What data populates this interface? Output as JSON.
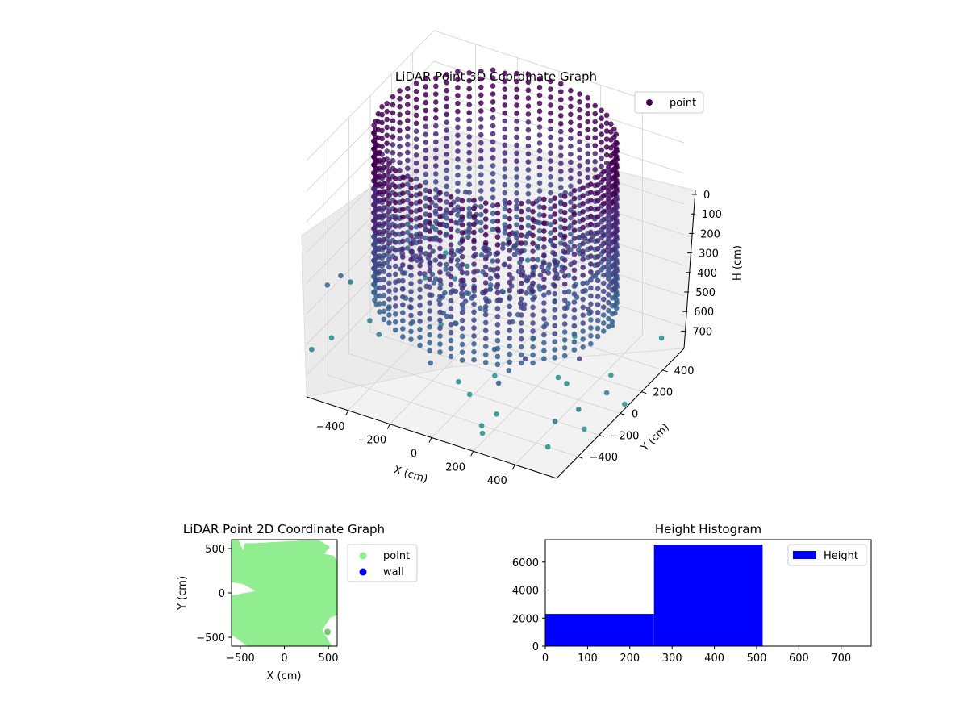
{
  "colors": {
    "viridis_dark": "#440154",
    "viridis_mid": "#3b528b",
    "viridis_teal": "#21918c",
    "viridis_green": "#5ec962",
    "point_2d": "#90ee90",
    "wall_2d": "#0000ff",
    "hist_bar": "#0000ff",
    "pane": "#f2f2f2",
    "grid": "#d0d0d0"
  },
  "chart_data": [
    {
      "type": "scatter3d",
      "title": "LiDAR Point 3D Coordinate Graph",
      "xlabel": "X (cm)",
      "ylabel": "Y (cm)",
      "zlabel": "H (cm)",
      "x_ticks": [
        "−400",
        "−200",
        "0",
        "200",
        "400"
      ],
      "y_ticks": [
        "−400",
        "−200",
        "0",
        "200",
        "400"
      ],
      "z_ticks": [
        "0",
        "100",
        "200",
        "300",
        "400",
        "500",
        "600",
        "700"
      ],
      "z_inverted": true,
      "legend": {
        "entries": [
          "point"
        ],
        "position": "upper-right"
      },
      "description_of_data": {
        "wall_ring_radius_cm": 520,
        "wall_height_range_cm": [
          0,
          520
        ],
        "color_by": "height (viridis)"
      }
    },
    {
      "type": "scatter",
      "title": "LiDAR Point 2D Coordinate Graph",
      "xlabel": "X (cm)",
      "ylabel": "Y (cm)",
      "x_ticks": [
        "−500",
        "0",
        "500"
      ],
      "y_ticks": [
        "500",
        "0",
        "−500"
      ],
      "xlim": [
        -600,
        600
      ],
      "ylim": [
        -600,
        600
      ],
      "series": [
        {
          "name": "point"
        },
        {
          "name": "wall"
        }
      ],
      "legend": {
        "position": "outside-upper-right"
      }
    },
    {
      "type": "bar",
      "title": "Height Histogram",
      "xlabel": "",
      "ylabel": "",
      "bins": [
        {
          "start": 0,
          "end": 257,
          "count": 2300
        },
        {
          "start": 257,
          "end": 514,
          "count": 7250
        },
        {
          "start": 514,
          "end": 771,
          "count": 30
        }
      ],
      "xlim": [
        0,
        771
      ],
      "ylim": [
        0,
        7600
      ],
      "x_ticks": [
        "0",
        "100",
        "200",
        "300",
        "400",
        "500",
        "600",
        "700"
      ],
      "y_ticks": [
        "0",
        "2000",
        "4000",
        "6000"
      ],
      "series": [
        {
          "name": "Height"
        }
      ],
      "legend": {
        "position": "upper-right"
      }
    }
  ]
}
